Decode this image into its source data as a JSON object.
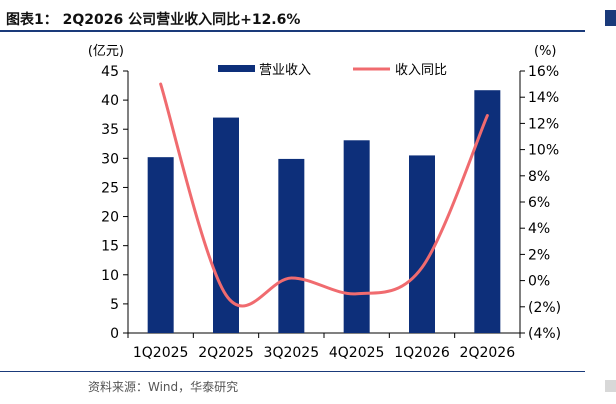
{
  "title": "图表1： 2Q2026 公司营业收入同比+12.6%",
  "source": "资料来源：Wind，华泰研究",
  "chart_data": {
    "type": "bar",
    "categories": [
      "1Q2025",
      "2Q2025",
      "3Q2025",
      "4Q2025",
      "1Q2026",
      "2Q2026"
    ],
    "series": [
      {
        "name": "营业收入",
        "type": "bar",
        "axis": "left",
        "values": [
          30.2,
          37.0,
          29.9,
          33.1,
          30.5,
          41.7
        ]
      },
      {
        "name": "收入同比",
        "type": "line",
        "axis": "right",
        "values": [
          15.0,
          -1.1,
          0.2,
          -1.0,
          1.0,
          12.6
        ]
      }
    ],
    "ylabel_left": "(亿元)",
    "ylabel_right": "(%)",
    "ylim_left": [
      0,
      45
    ],
    "ylim_right": [
      -4,
      16
    ],
    "yticks_left": [
      "0",
      "5",
      "10",
      "15",
      "20",
      "25",
      "30",
      "35",
      "40",
      "45"
    ],
    "yticks_right": [
      "(4%)",
      "(2%)",
      "0%",
      "2%",
      "4%",
      "6%",
      "8%",
      "10%",
      "12%",
      "14%",
      "16%"
    ],
    "legend_position": "top-center",
    "grid": false,
    "colors": {
      "bar": "#0d2f7a",
      "line": "#f06b6f",
      "axis": "#000000"
    }
  }
}
